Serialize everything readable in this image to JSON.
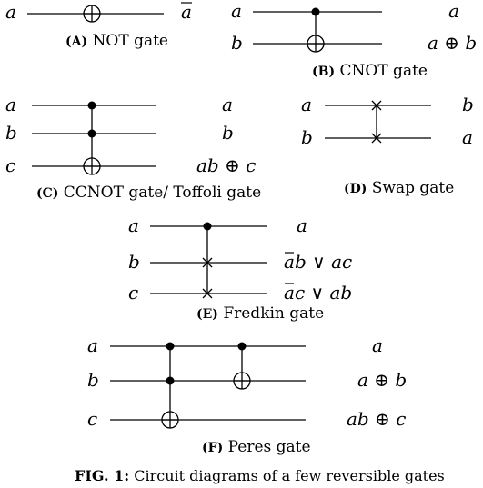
{
  "gates": {
    "not": {
      "inputs": [
        "a"
      ],
      "outputs": [
        "a"
      ],
      "caption_tag": "(A)",
      "caption_text": "NOT gate"
    },
    "cnot": {
      "inputs": [
        "a",
        "b"
      ],
      "outputs": [
        "a",
        "a ⊕ b"
      ],
      "caption_tag": "(B)",
      "caption_text": "CNOT gate"
    },
    "ccnot": {
      "inputs": [
        "a",
        "b",
        "c"
      ],
      "outputs": [
        "a",
        "b",
        "ab ⊕ c"
      ],
      "caption_tag": "(C)",
      "caption_text": "CCNOT gate/ Toffoli gate"
    },
    "swap": {
      "inputs": [
        "a",
        "b"
      ],
      "outputs": [
        "b",
        "a"
      ],
      "caption_tag": "(D)",
      "caption_text": "Swap gate"
    },
    "fredkin": {
      "inputs": [
        "a",
        "b",
        "c"
      ],
      "output_1": "a",
      "output_2_rest": "b ∨ ac",
      "output_3_rest": "c ∨ ab",
      "caption_tag": "(E)",
      "caption_text": "Fredkin gate"
    },
    "peres": {
      "inputs": [
        "a",
        "b",
        "c"
      ],
      "outputs": [
        "a",
        "a ⊕ b",
        "ab ⊕ c"
      ],
      "caption_tag": "(F)",
      "caption_text": "Peres gate"
    }
  },
  "figure_caption": {
    "label": "FIG. 1:",
    "text": "Circuit diagrams of a few reversible gates"
  }
}
